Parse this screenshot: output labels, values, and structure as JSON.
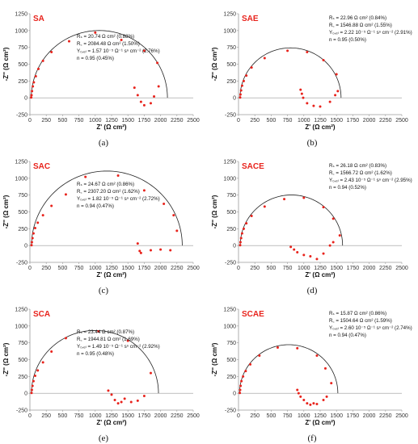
{
  "figure": {
    "marker_color": "#e8231c",
    "fit_color": "#222222",
    "axis_color": "#9a9a9a"
  },
  "chart_data": [
    {
      "type": "scatter",
      "panel": "SA",
      "caption": "(a)",
      "xlabel": "Z' (Ω cm²)",
      "ylabel": "-Z'' (Ω cm²)",
      "xlim": [
        0,
        2500
      ],
      "ylim": [
        -250,
        1250
      ],
      "xticks": [
        "0",
        "250",
        "500",
        "750",
        "1000",
        "1250",
        "1500",
        "1750",
        "2000",
        "2250",
        "2500"
      ],
      "yticks": [
        "1250",
        "1000",
        "750",
        "500",
        "250",
        "0",
        "-250"
      ],
      "annotations": [
        "Rₛ = 20.74 Ω cm² (0.88%)",
        "R꜀ = 2084.48 Ω cm² (1.50%)",
        "Y₀,ₑₗ = 1.57 10⁻⁵ Ω⁻¹ sⁿ cm⁻² (2.76%)",
        "n = 0.95 (0.45%)"
      ],
      "annot_pos": "middle",
      "fit": {
        "rs": 20.74,
        "rc": 2084.48
      },
      "x": [
        20,
        25,
        32,
        45,
        60,
        90,
        130,
        200,
        330,
        600,
        1000,
        1400,
        1750,
        1950,
        1600,
        1650,
        1700,
        1750,
        1850,
        1900,
        1970
      ],
      "y": [
        5,
        40,
        100,
        170,
        230,
        320,
        430,
        550,
        680,
        840,
        970,
        860,
        700,
        520,
        150,
        40,
        -60,
        -110,
        -80,
        20,
        170
      ]
    },
    {
      "type": "scatter",
      "panel": "SAE",
      "caption": "(b)",
      "xlabel": "Z' (Ω cm²)",
      "ylabel": "-Z'' (Ω cm²)",
      "xlim": [
        0,
        2500
      ],
      "ylim": [
        -250,
        1250
      ],
      "xticks": [
        "0",
        "250",
        "500",
        "750",
        "1000",
        "1250",
        "1500",
        "1750",
        "2000",
        "2250",
        "2500"
      ],
      "yticks": [
        "1250",
        "1000",
        "750",
        "500",
        "250",
        "0",
        "-250"
      ],
      "annotations": [
        "Rₛ = 22.96 Ω cm² (0.84%)",
        "R꜀ = 1546.88 Ω cm² (1.55%)",
        "Y₀,ₑₗ = 2.22 10⁻⁵ Ω⁻¹ sⁿ cm⁻² (2.91%)",
        "n = 0.95 (0.50%)"
      ],
      "annot_pos": "top",
      "fit": {
        "rs": 22.96,
        "rc": 1546.88
      },
      "x": [
        25,
        30,
        40,
        55,
        80,
        120,
        200,
        400,
        750,
        1050,
        1300,
        1500,
        950,
        970,
        990,
        1050,
        1150,
        1250,
        1400,
        1480,
        1520
      ],
      "y": [
        5,
        50,
        110,
        180,
        250,
        330,
        450,
        590,
        700,
        680,
        560,
        350,
        120,
        60,
        0,
        -80,
        -120,
        -130,
        -60,
        40,
        100
      ]
    },
    {
      "type": "scatter",
      "panel": "SAC",
      "caption": "(c)",
      "xlabel": "Z' (Ω cm²)",
      "ylabel": "-Z'' (Ω cm²)",
      "xlim": [
        0,
        2500
      ],
      "ylim": [
        -250,
        1250
      ],
      "xticks": [
        "0",
        "250",
        "500",
        "750",
        "1000",
        "1250",
        "1500",
        "1750",
        "2000",
        "2250",
        "2500"
      ],
      "yticks": [
        "1250",
        "1000",
        "750",
        "500",
        "250",
        "0",
        "-250"
      ],
      "annotations": [
        "Rₛ = 24.67 Ω cm² (0.86%)",
        "R꜀ = 2307.20 Ω cm² (1.62%)",
        "Y₀,ₑₗ = 1.82 10⁻⁵ Ω⁻¹ sⁿ cm⁻² (2.72%)",
        "n = 0.94 (0.47%)"
      ],
      "annot_pos": "middle",
      "fit": {
        "rs": 24.67,
        "rc": 2307.2
      },
      "x": [
        25,
        30,
        40,
        55,
        80,
        120,
        200,
        330,
        550,
        850,
        1350,
        1750,
        2050,
        2200,
        2250,
        1650,
        1680,
        1700,
        1850,
        2000,
        2150
      ],
      "y": [
        5,
        50,
        110,
        180,
        260,
        340,
        450,
        590,
        760,
        1020,
        1040,
        820,
        620,
        450,
        220,
        30,
        -80,
        -110,
        -70,
        -60,
        -70
      ]
    },
    {
      "type": "scatter",
      "panel": "SACE",
      "caption": "(d)",
      "xlabel": "Z' (Ω cm²)",
      "ylabel": "-Z'' (Ω cm²)",
      "xlim": [
        0,
        2500
      ],
      "ylim": [
        -250,
        1250
      ],
      "xticks": [
        "0",
        "250",
        "500",
        "750",
        "1000",
        "1250",
        "1500",
        "1750",
        "2000",
        "2250",
        "2500"
      ],
      "yticks": [
        "1250",
        "1000",
        "750",
        "500",
        "250",
        "0",
        "-250"
      ],
      "annotations": [
        "Rₛ = 26.18 Ω cm² (0.83%)",
        "R꜀ = 1566.72 Ω cm² (1.62%)",
        "Y₀,ₑₗ = 2.43 10⁻⁵ Ω⁻¹ sⁿ cm⁻² (2.95%)",
        "n = 0.94 (0.52%)"
      ],
      "annot_pos": "top",
      "fit": {
        "rs": 26.18,
        "rc": 1566.72
      },
      "x": [
        25,
        30,
        40,
        55,
        80,
        120,
        200,
        400,
        700,
        1000,
        1300,
        1450,
        1550,
        800,
        850,
        900,
        1000,
        1100,
        1200,
        1300,
        1400,
        1450
      ],
      "y": [
        5,
        50,
        110,
        180,
        250,
        330,
        440,
        580,
        690,
        710,
        570,
        400,
        150,
        -20,
        -60,
        -100,
        -140,
        -160,
        -200,
        -120,
        0,
        50
      ]
    },
    {
      "type": "scatter",
      "panel": "SCA",
      "caption": "(e)",
      "xlabel": "Z' (Ω cm²)",
      "ylabel": "-Z'' (Ω cm²)",
      "xlim": [
        0,
        2500
      ],
      "ylim": [
        -250,
        1250
      ],
      "xticks": [
        "0",
        "250",
        "500",
        "750",
        "1000",
        "1250",
        "1500",
        "1750",
        "2000",
        "2250",
        "2500"
      ],
      "yticks": [
        "1250",
        "1000",
        "750",
        "500",
        "250",
        "0",
        "-250"
      ],
      "annotations": [
        "Rₛ = 23.44 Ω cm² (0.87%)",
        "R꜀ = 1944.81 Ω cm² (1.69%)",
        "Y₀,ₑₗ = 1.49 10⁻⁵ Ω⁻¹ sⁿ cm⁻² (2.92%)",
        "n = 0.95 (0.48%)"
      ],
      "annot_pos": "middle",
      "fit": {
        "rs": 23.44,
        "rc": 1944.81
      },
      "x": [
        25,
        30,
        40,
        55,
        80,
        120,
        200,
        330,
        550,
        1050,
        1500,
        1850,
        1200,
        1250,
        1300,
        1350,
        1400,
        1450,
        1550,
        1650,
        1750
      ],
      "y": [
        5,
        50,
        110,
        180,
        260,
        340,
        460,
        620,
        820,
        920,
        780,
        300,
        40,
        -20,
        -100,
        -150,
        -130,
        -80,
        -130,
        -110,
        -40
      ]
    },
    {
      "type": "scatter",
      "panel": "SCAE",
      "caption": "(f)",
      "xlabel": "Z' (Ω cm²)",
      "ylabel": "-Z'' (Ω cm²)",
      "xlim": [
        0,
        2500
      ],
      "ylim": [
        -250,
        1250
      ],
      "xticks": [
        "0",
        "250",
        "500",
        "750",
        "1000",
        "1250",
        "1500",
        "1750",
        "2000",
        "2250",
        "2500"
      ],
      "yticks": [
        "1250",
        "1000",
        "750",
        "500",
        "250",
        "0",
        "-250"
      ],
      "annotations": [
        "Rₛ = 15.87 Ω cm² (0.86%)",
        "R꜀ = 1504.64 Ω cm² (1.59%)",
        "Y₀,ₑₗ = 2.60 10⁻⁵ Ω⁻¹ sⁿ cm⁻² (2.74%)",
        "n = 0.94 (0.47%)"
      ],
      "annot_pos": "top",
      "fit": {
        "rs": 15.87,
        "rc": 1504.64
      },
      "x": [
        20,
        25,
        32,
        45,
        70,
        110,
        180,
        320,
        600,
        900,
        1200,
        1330,
        1420,
        900,
        920,
        950,
        1000,
        1050,
        1100,
        1150,
        1200,
        1300,
        1350
      ],
      "y": [
        5,
        50,
        110,
        180,
        250,
        330,
        430,
        560,
        680,
        670,
        560,
        370,
        150,
        50,
        0,
        -50,
        -100,
        -150,
        -170,
        -150,
        -160,
        -100,
        -50
      ]
    }
  ]
}
